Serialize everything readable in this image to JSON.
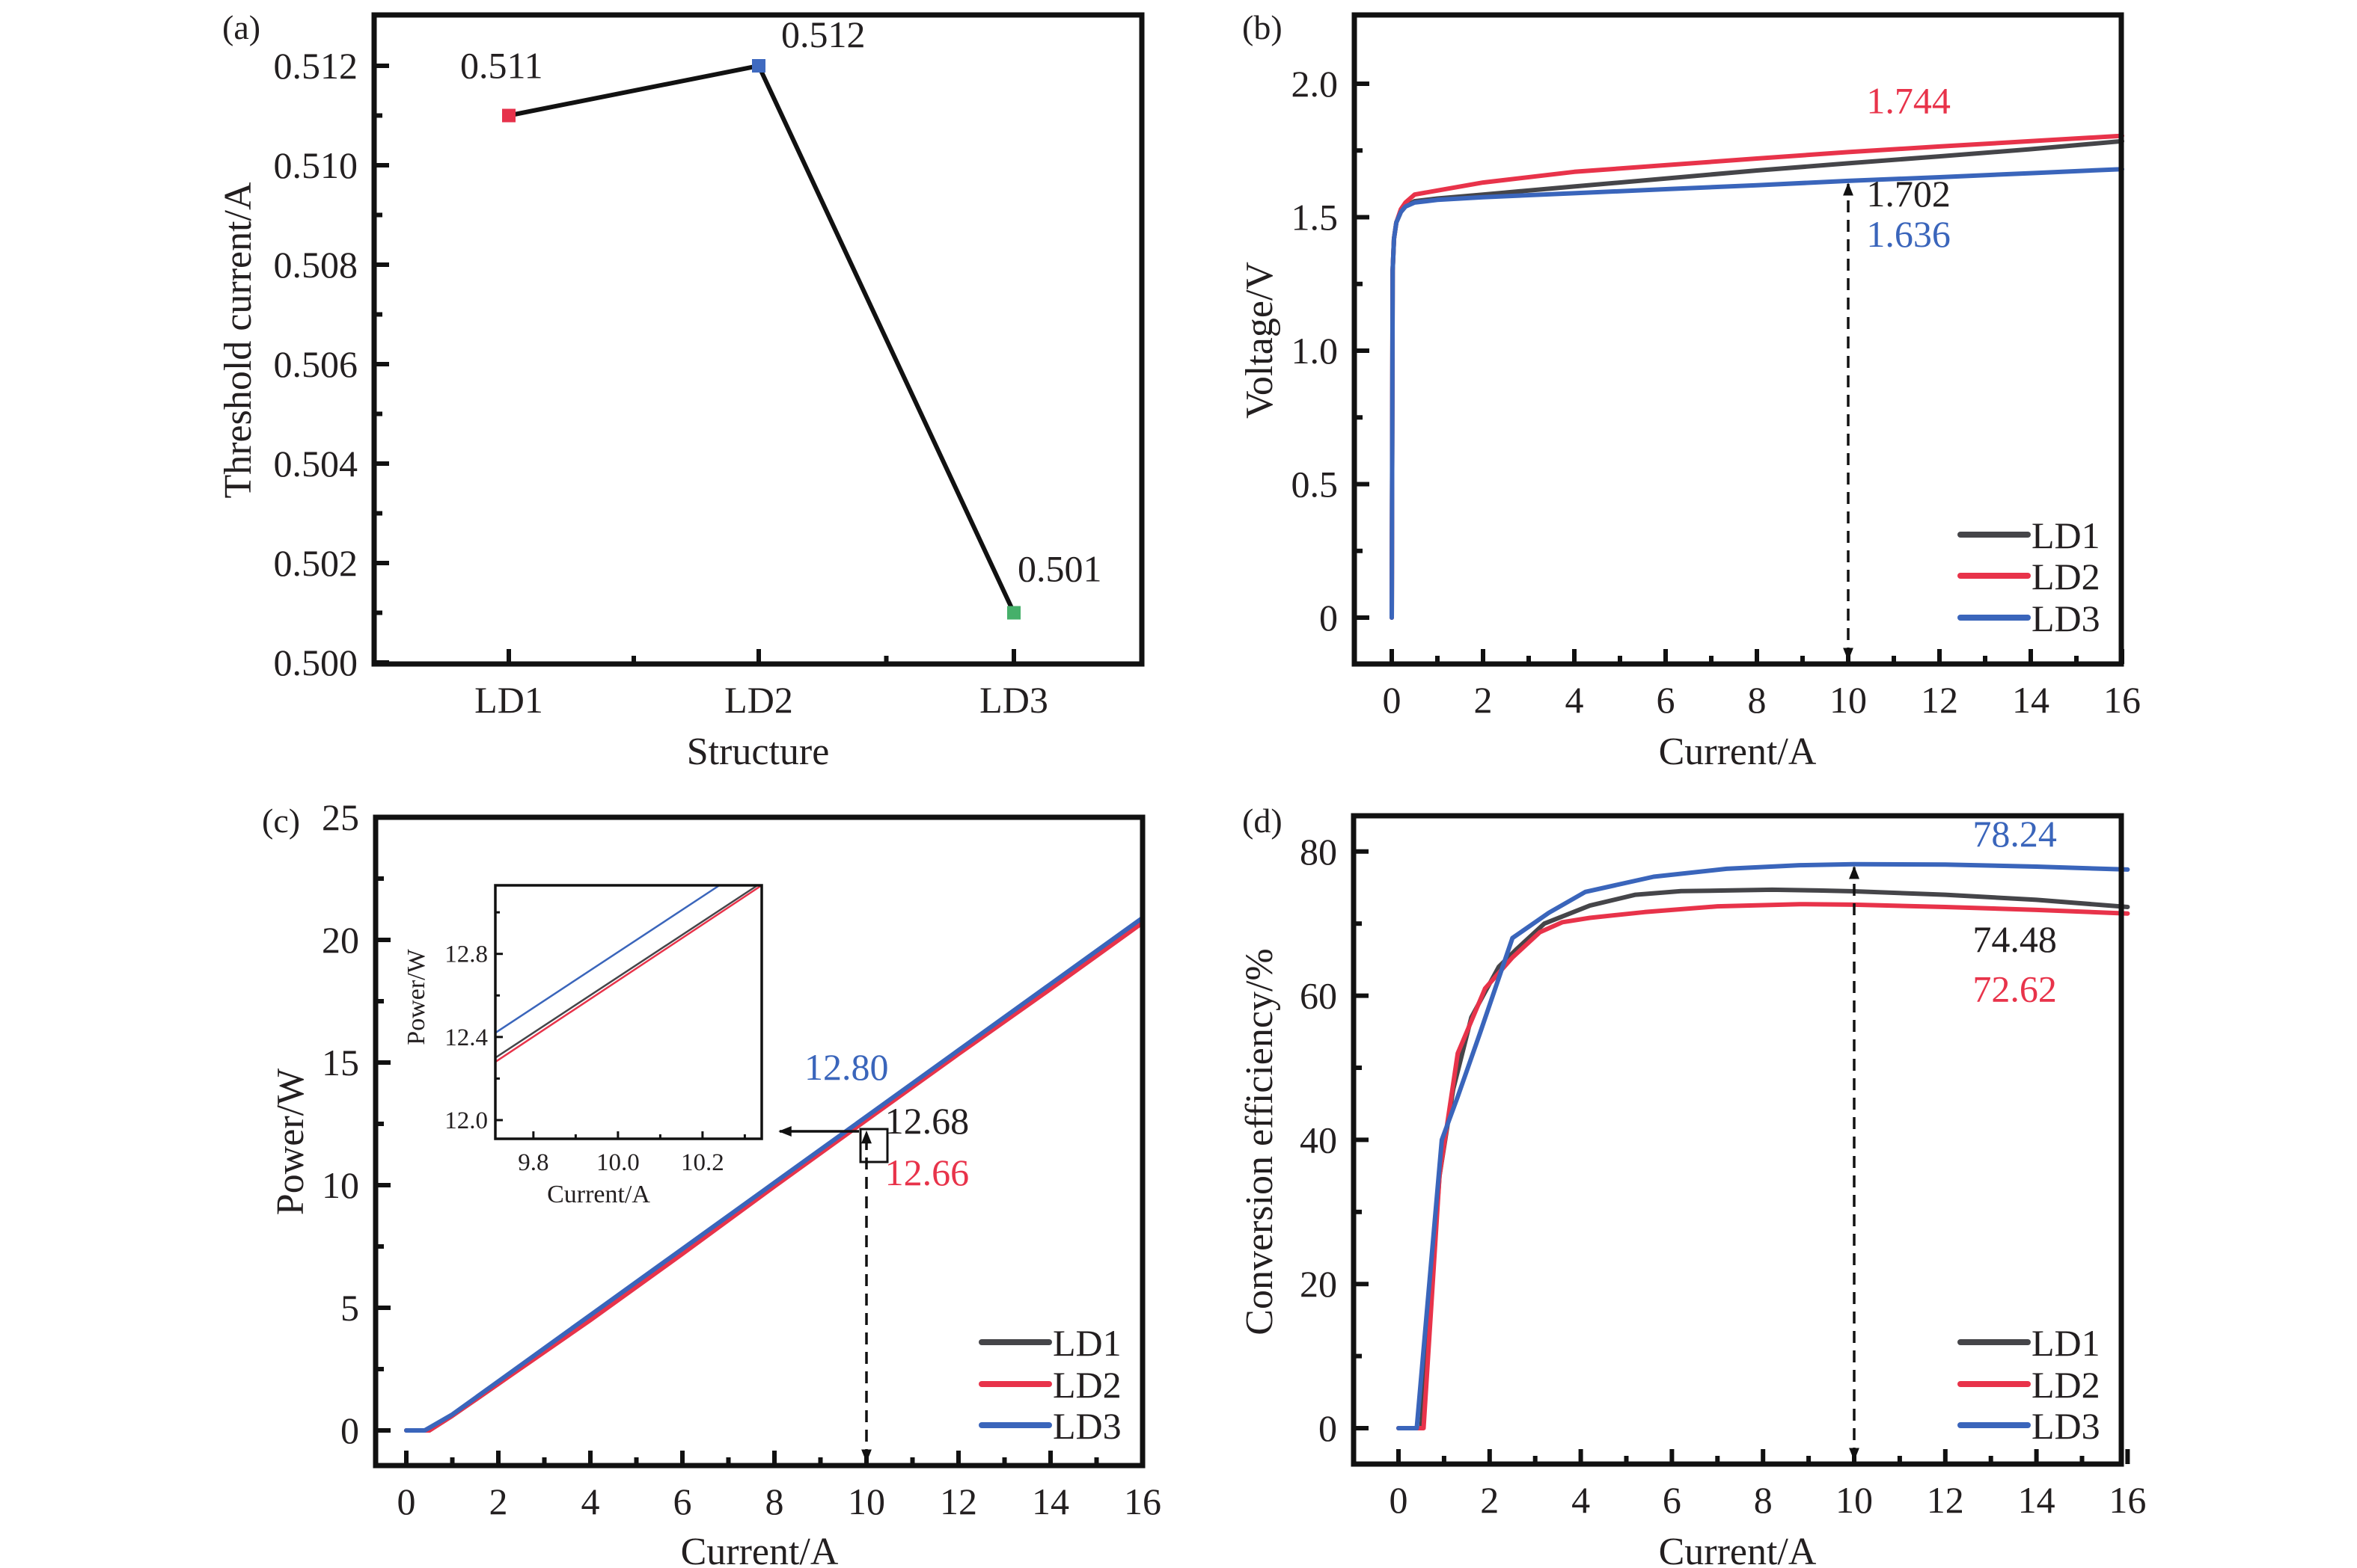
{
  "colors": {
    "LD1": "#454549",
    "LD2": "#e8334a",
    "LD3": "#3a65bb",
    "LD3_marker_a": "#3f6ac0",
    "LD1_marker_a": "#e6324b",
    "green_marker_a": "#46b06a",
    "axis": "#111111"
  },
  "chart_data": [
    {
      "id": "a",
      "panel_label": "(a)",
      "type": "line",
      "title": "",
      "xlabel": "Structure",
      "ylabel": "Threshold current/A",
      "categories": [
        "LD1",
        "LD2",
        "LD3"
      ],
      "values": [
        0.511,
        0.512,
        0.501
      ],
      "marker_colors": [
        "#e6324b",
        "#3f6ac0",
        "#46b06a"
      ],
      "data_labels": [
        "0.511",
        "0.512",
        "0.501"
      ],
      "ylim": [
        0.5,
        0.513
      ],
      "yticks": [
        0.5,
        0.502,
        0.504,
        0.506,
        0.508,
        0.51,
        0.512
      ],
      "ytick_labels": [
        "0.500",
        "0.502",
        "0.504",
        "0.506",
        "0.508",
        "0.510",
        "0.512"
      ],
      "grid": false,
      "legend": "none"
    },
    {
      "id": "b",
      "panel_label": "(b)",
      "type": "line",
      "xlabel": "Current/A",
      "ylabel": "Voltage/V",
      "xlim": [
        -1,
        16
      ],
      "ylim": [
        -0.2,
        2.25
      ],
      "xticks": [
        0,
        2,
        4,
        6,
        8,
        10,
        12,
        14,
        16
      ],
      "xtick_labels": [
        "0",
        "2",
        "4",
        "6",
        "8",
        "10",
        "12",
        "14",
        "16"
      ],
      "yticks": [
        0,
        0.5,
        1.0,
        1.5,
        2.0
      ],
      "ytick_labels": [
        "0",
        "0.5",
        "1.0",
        "1.5",
        "2.0"
      ],
      "legend": "bottom-right",
      "legend_entries": [
        "LD1",
        "LD2",
        "LD3"
      ],
      "series": [
        {
          "name": "LD1",
          "x": [
            0,
            0.02,
            0.05,
            0.1,
            0.2,
            0.3,
            0.5,
            1,
            2,
            4,
            6,
            8,
            10,
            12,
            14,
            16
          ],
          "y": [
            0,
            1.3,
            1.42,
            1.48,
            1.52,
            1.54,
            1.56,
            1.57,
            1.585,
            1.615,
            1.645,
            1.675,
            1.702,
            1.728,
            1.755,
            1.785
          ]
        },
        {
          "name": "LD2",
          "x": [
            0,
            0.02,
            0.05,
            0.1,
            0.2,
            0.3,
            0.5,
            1,
            2,
            4,
            6,
            8,
            10,
            12,
            14,
            16
          ],
          "y": [
            0,
            1.3,
            1.42,
            1.48,
            1.53,
            1.555,
            1.585,
            1.6,
            1.63,
            1.67,
            1.695,
            1.72,
            1.744,
            1.765,
            1.785,
            1.805
          ]
        },
        {
          "name": "LD3",
          "x": [
            0,
            0.02,
            0.05,
            0.1,
            0.2,
            0.3,
            0.5,
            1,
            2,
            4,
            6,
            8,
            10,
            12,
            14,
            16
          ],
          "y": [
            0,
            1.3,
            1.42,
            1.48,
            1.52,
            1.54,
            1.555,
            1.565,
            1.575,
            1.59,
            1.605,
            1.62,
            1.636,
            1.65,
            1.665,
            1.68
          ]
        }
      ],
      "annotations": [
        {
          "text": "1.744",
          "series": "LD2",
          "x": 10.4,
          "y": 1.89
        },
        {
          "text": "1.702",
          "series": "LD1",
          "x": 10.4,
          "y": 1.54
        },
        {
          "text": "1.636",
          "series": "LD3",
          "x": 10.4,
          "y": 1.39
        }
      ],
      "arrow": {
        "x": 10,
        "y_from": -0.2,
        "y_to": 1.636,
        "style": "dashed-double"
      }
    },
    {
      "id": "c",
      "panel_label": "(c)",
      "type": "line",
      "xlabel": "Current/A",
      "ylabel": "Power/W",
      "xlim": [
        -1,
        16
      ],
      "ylim": [
        -1.5,
        25
      ],
      "xticks": [
        0,
        2,
        4,
        6,
        8,
        10,
        12,
        14,
        16
      ],
      "xtick_labels": [
        "0",
        "2",
        "4",
        "6",
        "8",
        "10",
        "12",
        "14",
        "16"
      ],
      "yticks": [
        0,
        5,
        10,
        15,
        20,
        25
      ],
      "ytick_labels": [
        "0",
        "5",
        "10",
        "15",
        "20",
        "25"
      ],
      "legend": "bottom-right",
      "legend_entries": [
        "LD1",
        "LD2",
        "LD3"
      ],
      "series": [
        {
          "name": "LD1",
          "x": [
            0,
            0.5,
            1,
            2,
            4,
            6,
            8,
            10,
            12,
            14,
            16
          ],
          "y": [
            0,
            0,
            0.6,
            1.9,
            4.6,
            7.3,
            10.0,
            12.68,
            15.4,
            18.1,
            20.8
          ]
        },
        {
          "name": "LD2",
          "x": [
            0,
            0.5,
            1,
            2,
            4,
            6,
            8,
            10,
            12,
            14,
            16
          ],
          "y": [
            0,
            0,
            0.6,
            1.9,
            4.5,
            7.2,
            9.95,
            12.66,
            15.35,
            18.0,
            20.7
          ]
        },
        {
          "name": "LD3",
          "x": [
            0,
            0.4,
            1,
            2,
            4,
            6,
            8,
            10,
            12,
            14,
            16
          ],
          "y": [
            0,
            0,
            0.65,
            2.0,
            4.7,
            7.4,
            10.1,
            12.8,
            15.5,
            18.2,
            20.9
          ]
        }
      ],
      "annotations": [
        {
          "text": "12.80",
          "series": "LD3",
          "x": 8.65,
          "y": 14.3
        },
        {
          "text": "12.68",
          "series": "LD1",
          "x": 10.4,
          "y": 12.1
        },
        {
          "text": "12.66",
          "series": "LD2",
          "x": 10.4,
          "y": 10.0
        }
      ],
      "arrow": {
        "x": 10,
        "y_from": -1.5,
        "y_to": 12.3,
        "style": "dashed-double"
      },
      "inset": {
        "xlabel": "Current/A",
        "ylabel": "Power/W",
        "xlim": [
          9.71,
          10.34
        ],
        "ylim": [
          11.91,
          13.13
        ],
        "xticks": [
          9.8,
          10.0,
          10.2
        ],
        "xtick_labels": [
          "9.8",
          "10.0",
          "10.2"
        ],
        "yticks": [
          12.0,
          12.4,
          12.8
        ],
        "ytick_labels": [
          "12.0",
          "12.4",
          "12.8"
        ],
        "series": [
          {
            "name": "LD1",
            "x": [
              9.71,
              10.33
            ],
            "y": [
              12.3,
              13.13
            ]
          },
          {
            "name": "LD2",
            "x": [
              9.71,
              10.34
            ],
            "y": [
              12.28,
              13.13
            ]
          },
          {
            "name": "LD3",
            "x": [
              9.71,
              10.24
            ],
            "y": [
              12.42,
              13.13
            ]
          }
        ]
      }
    },
    {
      "id": "d",
      "panel_label": "(d)",
      "type": "line",
      "xlabel": "Current/A",
      "ylabel": "Conversion efficiency/%",
      "xlim": [
        -1,
        16
      ],
      "ylim": [
        -5,
        85
      ],
      "xticks": [
        0,
        2,
        4,
        6,
        8,
        10,
        12,
        14,
        16
      ],
      "xtick_labels": [
        "0",
        "2",
        "4",
        "6",
        "8",
        "10",
        "12",
        "14",
        "16"
      ],
      "yticks": [
        0,
        20,
        40,
        60,
        80
      ],
      "ytick_labels": [
        "0",
        "20",
        "40",
        "60",
        "80"
      ],
      "legend": "bottom-right",
      "legend_entries": [
        "LD1",
        "LD2",
        "LD3"
      ],
      "series": [
        {
          "name": "LD1",
          "x": [
            0,
            0.5,
            0.9,
            1.2,
            1.6,
            2.2,
            2.6,
            3.2,
            4.2,
            5.2,
            6.2,
            7.2,
            8.2,
            9.2,
            10,
            12,
            14,
            16
          ],
          "y": [
            0,
            0,
            35,
            47,
            57,
            64,
            66.5,
            70,
            72.5,
            74,
            74.5,
            74.6,
            74.7,
            74.6,
            74.48,
            74,
            73.3,
            72.3
          ]
        },
        {
          "name": "LD2",
          "x": [
            0,
            0.5,
            0.55,
            0.9,
            1.3,
            1.9,
            2.5,
            3.1,
            3.6,
            4.2,
            5.4,
            7,
            8.8,
            10,
            12,
            14,
            16
          ],
          "y": [
            0,
            0,
            0,
            35,
            52,
            61,
            65.3,
            68.8,
            70.2,
            70.8,
            71.6,
            72.4,
            72.7,
            72.62,
            72.3,
            71.9,
            71.4
          ]
        },
        {
          "name": "LD3",
          "x": [
            0,
            0.4,
            0.95,
            1.3,
            1.8,
            2.5,
            3.3,
            4.1,
            5.6,
            7.2,
            8.8,
            10,
            12,
            14,
            16
          ],
          "y": [
            0,
            0,
            40,
            46,
            55,
            68,
            71.5,
            74.4,
            76.5,
            77.6,
            78.1,
            78.24,
            78.2,
            77.9,
            77.5
          ]
        }
      ],
      "annotations": [
        {
          "text": "78.24",
          "series": "LD3",
          "x": 12.6,
          "y": 80.7
        },
        {
          "text": "74.48",
          "series": "LD1",
          "x": 12.6,
          "y": 66.1
        },
        {
          "text": "72.62",
          "series": "LD2",
          "x": 12.6,
          "y": 59.2
        }
      ],
      "arrow": {
        "x": 10,
        "y_from": -5,
        "y_to": 78.24,
        "style": "dashed-double"
      }
    }
  ]
}
